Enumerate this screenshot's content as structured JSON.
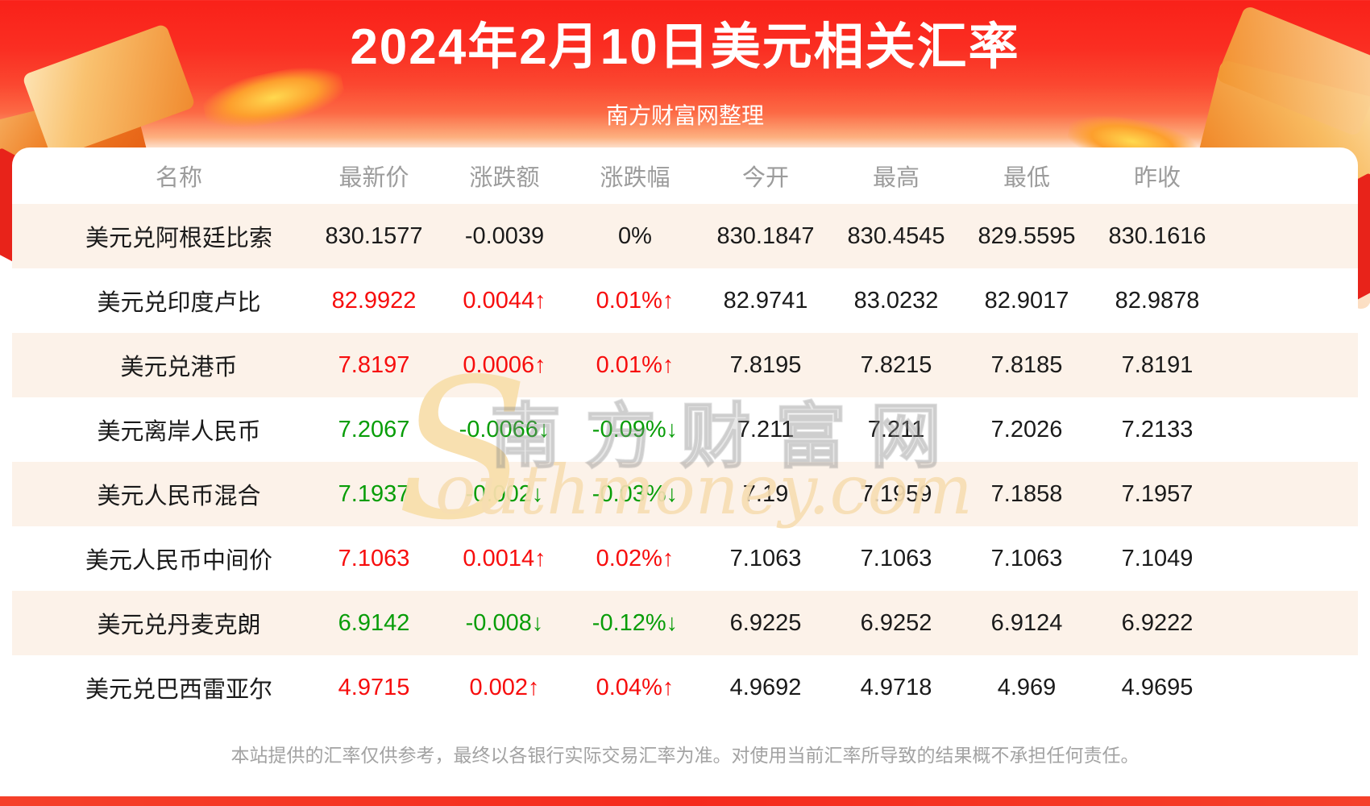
{
  "page": {
    "title": "2024年2月10日美元相关汇率",
    "subtitle": "南方财富网整理",
    "disclaimer": "本站提供的汇率仅供参考，最终以各银行实际交易汇率为准。对使用当前汇率所导致的结果概不承担任何责任。"
  },
  "watermark": {
    "s": "S",
    "cn": "南方财富网",
    "en": "outhmoney.com"
  },
  "colors": {
    "up_red": "#f70d0d",
    "down_green": "#089d08",
    "neutral_black": "#1a1a1a",
    "header_gray": "#9c9c9c",
    "banner_red": "#f92119",
    "row_alt_bg": "#fcf2e9"
  },
  "table": {
    "columns": [
      "名称",
      "最新价",
      "涨跌额",
      "涨跌幅",
      "今开",
      "最高",
      "最低",
      "昨收"
    ],
    "rows": [
      {
        "name": "美元兑阿根廷比索",
        "latest": "830.1577",
        "change": "-0.0039",
        "pct": "0%",
        "direction": "flat",
        "open": "830.1847",
        "high": "830.4545",
        "low": "829.5595",
        "prev": "830.1616"
      },
      {
        "name": "美元兑印度卢比",
        "latest": "82.9922",
        "change": "0.0044↑",
        "pct": "0.01%↑",
        "direction": "up",
        "open": "82.9741",
        "high": "83.0232",
        "low": "82.9017",
        "prev": "82.9878"
      },
      {
        "name": "美元兑港币",
        "latest": "7.8197",
        "change": "0.0006↑",
        "pct": "0.01%↑",
        "direction": "up",
        "open": "7.8195",
        "high": "7.8215",
        "low": "7.8185",
        "prev": "7.8191"
      },
      {
        "name": "美元离岸人民币",
        "latest": "7.2067",
        "change": "-0.0066↓",
        "pct": "-0.09%↓",
        "direction": "down",
        "open": "7.211",
        "high": "7.211",
        "low": "7.2026",
        "prev": "7.2133"
      },
      {
        "name": "美元人民币混合",
        "latest": "7.1937",
        "change": "-0.002↓",
        "pct": "-0.03%↓",
        "direction": "down",
        "open": "7.19",
        "high": "7.1959",
        "low": "7.1858",
        "prev": "7.1957"
      },
      {
        "name": "美元人民币中间价",
        "latest": "7.1063",
        "change": "0.0014↑",
        "pct": "0.02%↑",
        "direction": "up",
        "open": "7.1063",
        "high": "7.1063",
        "low": "7.1063",
        "prev": "7.1049"
      },
      {
        "name": "美元兑丹麦克朗",
        "latest": "6.9142",
        "change": "-0.008↓",
        "pct": "-0.12%↓",
        "direction": "down",
        "open": "6.9225",
        "high": "6.9252",
        "low": "6.9124",
        "prev": "6.9222"
      },
      {
        "name": "美元兑巴西雷亚尔",
        "latest": "4.9715",
        "change": "0.002↑",
        "pct": "0.04%↑",
        "direction": "up",
        "open": "4.9692",
        "high": "4.9718",
        "low": "4.969",
        "prev": "4.9695"
      }
    ]
  },
  "chart_data": {
    "type": "table",
    "title": "2024年2月10日美元相关汇率",
    "columns": [
      "名称",
      "最新价",
      "涨跌额",
      "涨跌幅",
      "今开",
      "最高",
      "最低",
      "昨收"
    ],
    "rows": [
      [
        "美元兑阿根廷比索",
        "830.1577",
        "-0.0039",
        "0%",
        "830.1847",
        "830.4545",
        "829.5595",
        "830.1616"
      ],
      [
        "美元兑印度卢比",
        "82.9922",
        "0.0044↑",
        "0.01%↑",
        "82.9741",
        "83.0232",
        "82.9017",
        "82.9878"
      ],
      [
        "美元兑港币",
        "7.8197",
        "0.0006↑",
        "0.01%↑",
        "7.8195",
        "7.8215",
        "7.8185",
        "7.8191"
      ],
      [
        "美元离岸人民币",
        "7.2067",
        "-0.0066↓",
        "-0.09%↓",
        "7.211",
        "7.211",
        "7.2026",
        "7.2133"
      ],
      [
        "美元人民币混合",
        "7.1937",
        "-0.002↓",
        "-0.03%↓",
        "7.19",
        "7.1959",
        "7.1858",
        "7.1957"
      ],
      [
        "美元人民币中间价",
        "7.1063",
        "0.0014↑",
        "0.02%↑",
        "7.1063",
        "7.1063",
        "7.1063",
        "7.1049"
      ],
      [
        "美元兑丹麦克朗",
        "6.9142",
        "-0.008↓",
        "-0.12%↓",
        "6.9225",
        "6.9252",
        "6.9124",
        "6.9222"
      ],
      [
        "美元兑巴西雷亚尔",
        "4.9715",
        "0.002↑",
        "0.04%↑",
        "4.9692",
        "4.9718",
        "4.969",
        "4.9695"
      ]
    ]
  }
}
